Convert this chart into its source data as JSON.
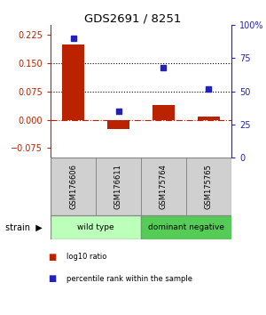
{
  "title": "GDS2691 / 8251",
  "samples": [
    "GSM176606",
    "GSM176611",
    "GSM175764",
    "GSM175765"
  ],
  "log10_ratio": [
    0.2,
    -0.025,
    0.038,
    0.008
  ],
  "percentile_rank": [
    90,
    35,
    68,
    52
  ],
  "bar_color": "#bb2200",
  "dot_color": "#2222bb",
  "ylim_left": [
    -0.1,
    0.25
  ],
  "ylim_right": [
    0,
    100
  ],
  "yticks_left": [
    -0.075,
    0,
    0.075,
    0.15,
    0.225
  ],
  "yticks_right": [
    0,
    25,
    50,
    75,
    100
  ],
  "ytick_labels_right": [
    "0",
    "25",
    "50",
    "75",
    "100%"
  ],
  "hlines": [
    0.075,
    0.15
  ],
  "groups": [
    {
      "label": "wild type",
      "color": "#bbffbb",
      "indices": [
        0,
        1
      ]
    },
    {
      "label": "dominant negative",
      "color": "#55cc55",
      "indices": [
        2,
        3
      ]
    }
  ],
  "strain_label": "strain",
  "legend_items": [
    {
      "color": "#bb2200",
      "label": "log10 ratio"
    },
    {
      "color": "#2222bb",
      "label": "percentile rank within the sample"
    }
  ]
}
